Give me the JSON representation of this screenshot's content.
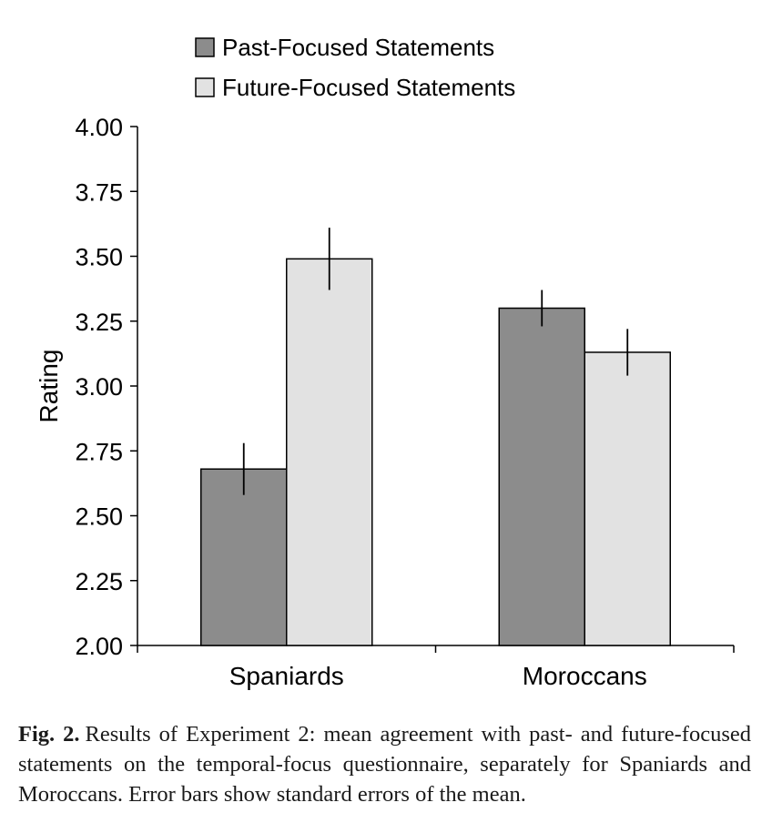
{
  "chart_data": {
    "type": "bar",
    "ylabel": "Rating",
    "xlabel": "",
    "ylim": [
      2.0,
      4.0
    ],
    "yticks": [
      "2.00",
      "2.25",
      "2.50",
      "2.75",
      "3.00",
      "3.25",
      "3.50",
      "3.75",
      "4.00"
    ],
    "categories": [
      "Spaniards",
      "Moroccans"
    ],
    "series": [
      {
        "name": "Past-Focused Statements",
        "color": "#8c8c8c",
        "values": [
          2.68,
          3.3
        ],
        "errors": [
          0.1,
          0.07
        ]
      },
      {
        "name": "Future-Focused Statements",
        "color": "#e2e2e2",
        "values": [
          3.49,
          3.13
        ],
        "errors": [
          0.12,
          0.09
        ]
      }
    ],
    "legend_position": "top-left",
    "grid": false,
    "error_bars": "standard errors"
  },
  "caption": {
    "label": "Fig. 2.",
    "text": "Results of Experiment 2: mean agreement with past- and future-focused statements on the temporal-focus questionnaire, separately for Spaniards and Moroccans. Error bars show standard errors of the mean."
  }
}
